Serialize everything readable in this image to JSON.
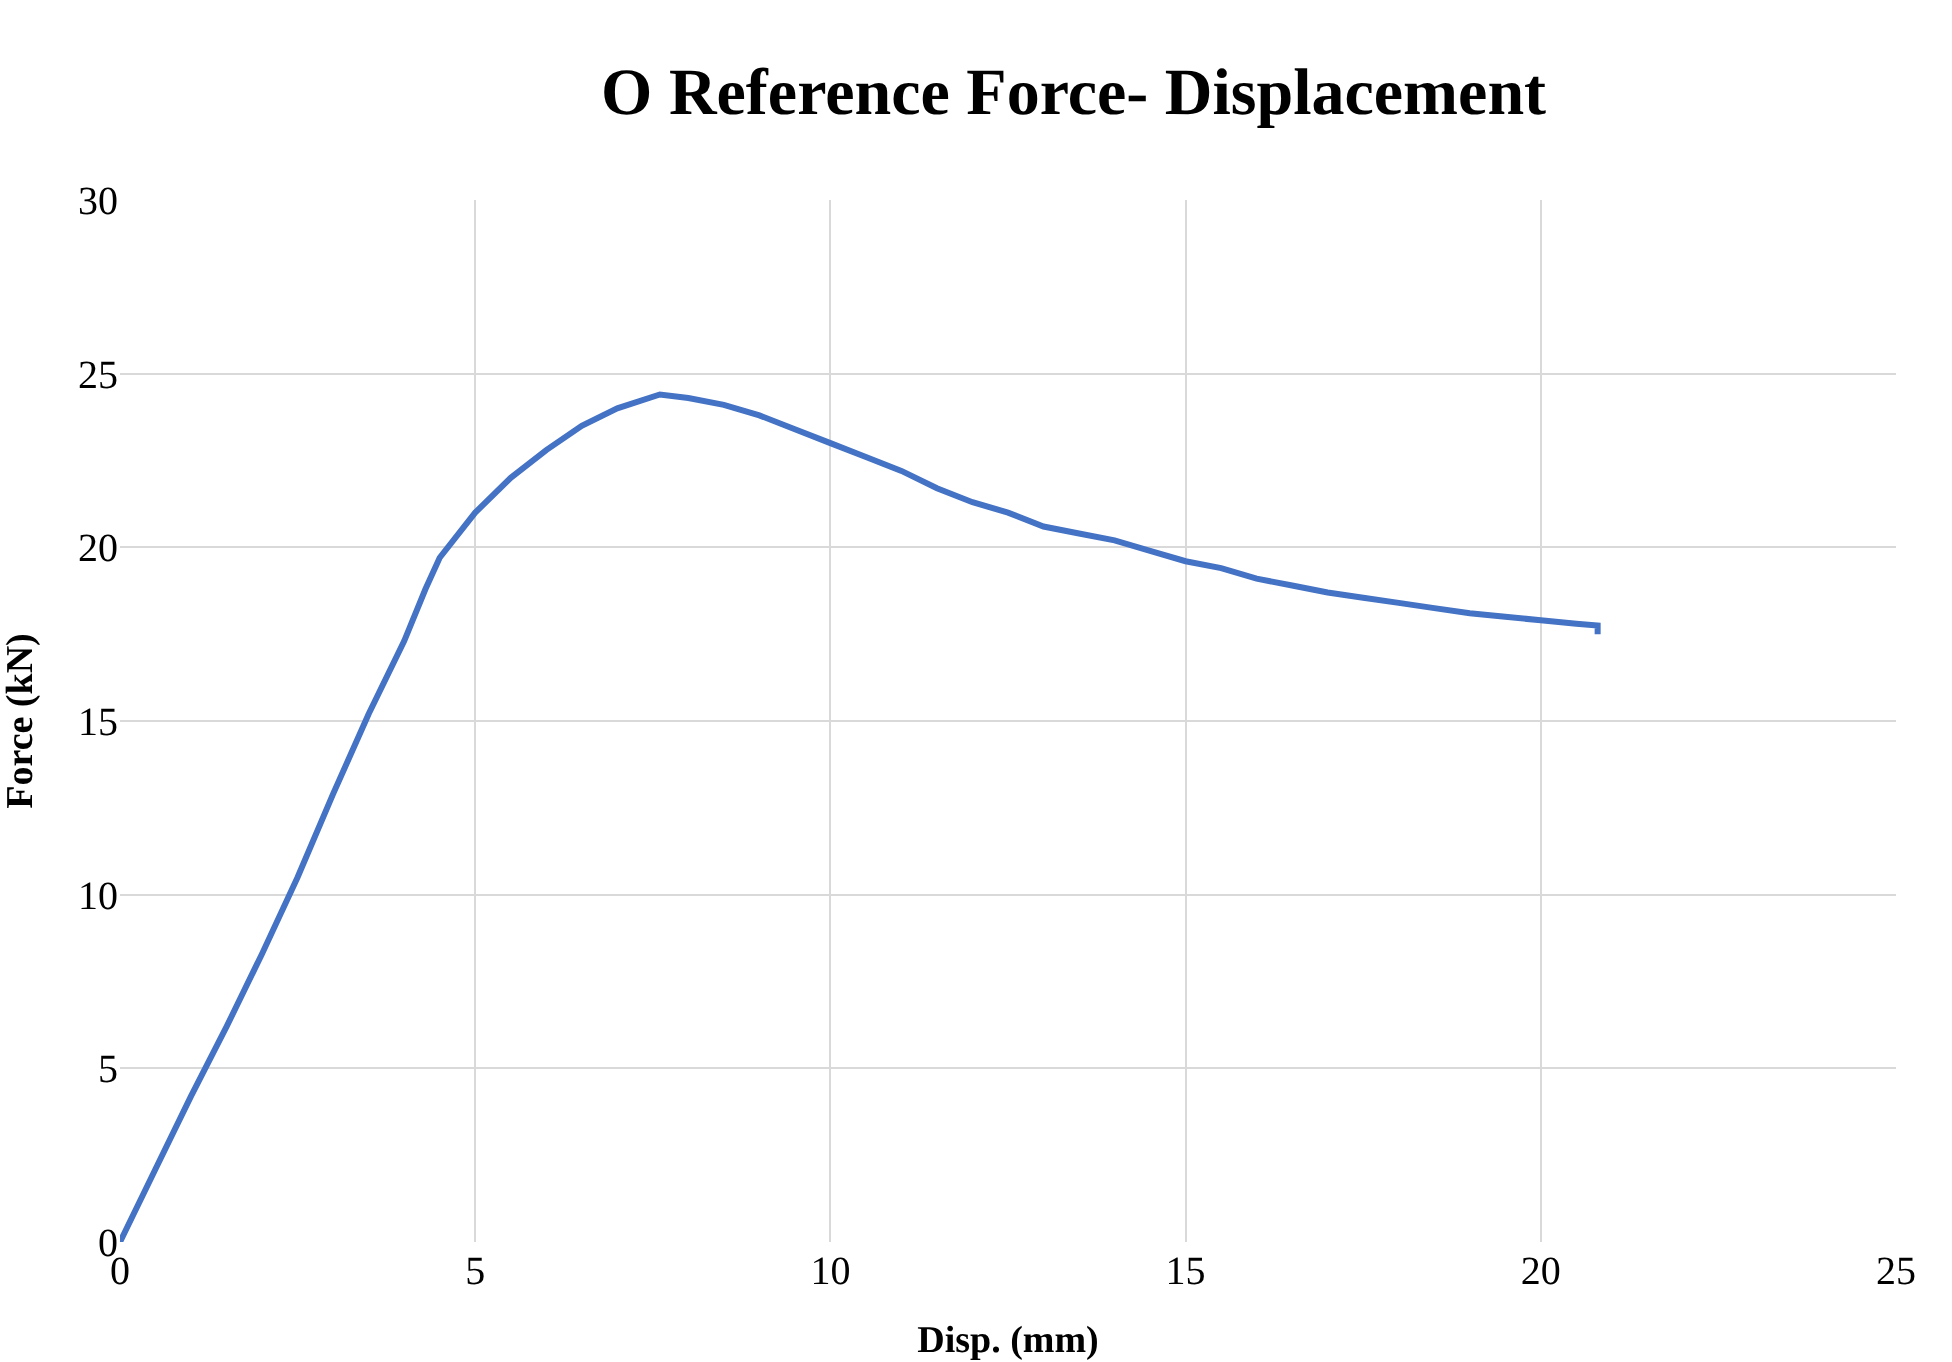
{
  "chart_data": {
    "type": "line",
    "title": "O Reference Force- Displacement",
    "xlabel": "Disp. (mm)",
    "ylabel": "Force (kN)",
    "x": [
      0,
      0.5,
      1,
      1.5,
      2,
      2.5,
      3,
      3.5,
      4,
      4.3,
      4.5,
      5,
      5.5,
      6,
      6.5,
      7,
      7.6,
      8,
      8.5,
      9,
      9.5,
      10,
      10.5,
      11,
      11.5,
      12,
      12.5,
      13,
      13.5,
      14,
      14.5,
      15,
      15.5,
      16,
      16.5,
      17,
      17.5,
      18,
      18.5,
      19,
      19.5,
      20,
      20.5,
      20.8,
      20.8
    ],
    "series": [
      {
        "color": "#4472c4",
        "values": [
          0,
          2.1,
          4.2,
          6.2,
          8.3,
          10.5,
          12.9,
          15.2,
          17.3,
          18.8,
          19.7,
          21,
          22,
          22.8,
          23.5,
          24,
          24.4,
          24.3,
          24.1,
          23.8,
          23.4,
          23,
          22.6,
          22.2,
          21.7,
          21.3,
          21,
          20.6,
          20.4,
          20.2,
          19.9,
          19.6,
          19.4,
          19.1,
          18.9,
          18.7,
          18.55,
          18.4,
          18.25,
          18.1,
          18,
          17.9,
          17.8,
          17.75,
          17.5
        ]
      }
    ],
    "xlim": [
      0,
      25
    ],
    "ylim": [
      0,
      30
    ],
    "xticks": [
      0,
      5,
      10,
      15,
      20,
      25
    ],
    "yticks": [
      0,
      5,
      10,
      15,
      20,
      25,
      30
    ],
    "grid": true,
    "marker": "none",
    "line_style": "solid"
  }
}
